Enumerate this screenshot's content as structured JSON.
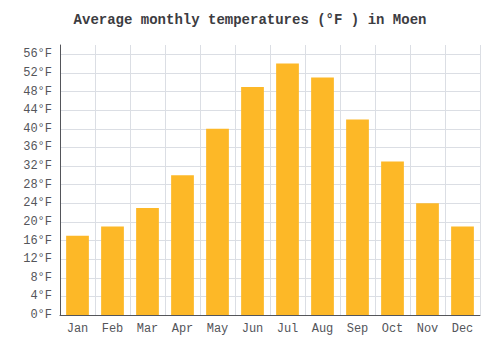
{
  "chart_data": {
    "type": "bar",
    "title": "Average monthly temperatures (°F ) in Moen",
    "categories": [
      "Jan",
      "Feb",
      "Mar",
      "Apr",
      "May",
      "Jun",
      "Jul",
      "Aug",
      "Sep",
      "Oct",
      "Nov",
      "Dec"
    ],
    "values": [
      17,
      19,
      23,
      30,
      40,
      49,
      54,
      51,
      42,
      33,
      24,
      19
    ],
    "color": "#FDB827",
    "ylim": [
      0,
      58
    ],
    "yticks": [
      {
        "value": 0,
        "label": "0°F"
      },
      {
        "value": 4,
        "label": "4°F"
      },
      {
        "value": 8,
        "label": "8°F"
      },
      {
        "value": 12,
        "label": "12°F"
      },
      {
        "value": 16,
        "label": "16°F"
      },
      {
        "value": 20,
        "label": "20°F"
      },
      {
        "value": 24,
        "label": "24°F"
      },
      {
        "value": 28,
        "label": "28°F"
      },
      {
        "value": 32,
        "label": "32°F"
      },
      {
        "value": 36,
        "label": "36°F"
      },
      {
        "value": 40,
        "label": "40°F"
      },
      {
        "value": 44,
        "label": "44°F"
      },
      {
        "value": 48,
        "label": "48°F"
      },
      {
        "value": 52,
        "label": "52°F"
      },
      {
        "value": 56,
        "label": "56°F"
      }
    ],
    "grid": true
  }
}
